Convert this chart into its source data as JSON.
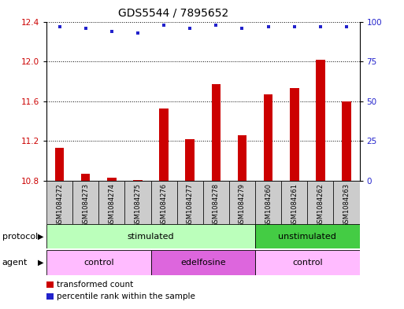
{
  "title": "GDS5544 / 7895652",
  "samples": [
    "GSM1084272",
    "GSM1084273",
    "GSM1084274",
    "GSM1084275",
    "GSM1084276",
    "GSM1084277",
    "GSM1084278",
    "GSM1084279",
    "GSM1084260",
    "GSM1084261",
    "GSM1084262",
    "GSM1084263"
  ],
  "transformed_count": [
    11.13,
    10.87,
    10.83,
    10.81,
    11.53,
    11.22,
    11.77,
    11.26,
    11.67,
    11.73,
    12.02,
    11.6
  ],
  "percentile_rank": [
    97,
    96,
    94,
    93,
    98,
    96,
    98,
    96,
    97,
    97,
    97,
    97
  ],
  "ylim_left": [
    10.8,
    12.4
  ],
  "ylim_right": [
    0,
    100
  ],
  "yticks_left": [
    10.8,
    11.2,
    11.6,
    12.0,
    12.4
  ],
  "yticks_right": [
    0,
    25,
    50,
    75,
    100
  ],
  "bar_color": "#cc0000",
  "dot_color": "#2222cc",
  "bar_width": 0.35,
  "protocol_groups": [
    {
      "label": "stimulated",
      "start": 0,
      "end": 8,
      "color": "#bbffbb"
    },
    {
      "label": "unstimulated",
      "start": 8,
      "end": 12,
      "color": "#44cc44"
    }
  ],
  "agent_groups": [
    {
      "label": "control",
      "start": 0,
      "end": 4,
      "color": "#ffbbff"
    },
    {
      "label": "edelfosine",
      "start": 4,
      "end": 8,
      "color": "#dd66dd"
    },
    {
      "label": "control",
      "start": 8,
      "end": 12,
      "color": "#ffbbff"
    }
  ],
  "legend_items": [
    {
      "label": "transformed count",
      "color": "#cc0000"
    },
    {
      "label": "percentile rank within the sample",
      "color": "#2222cc"
    }
  ],
  "protocol_label": "protocol",
  "agent_label": "agent",
  "background_color": "#ffffff",
  "sample_box_color": "#cccccc",
  "ybase": 10.8
}
